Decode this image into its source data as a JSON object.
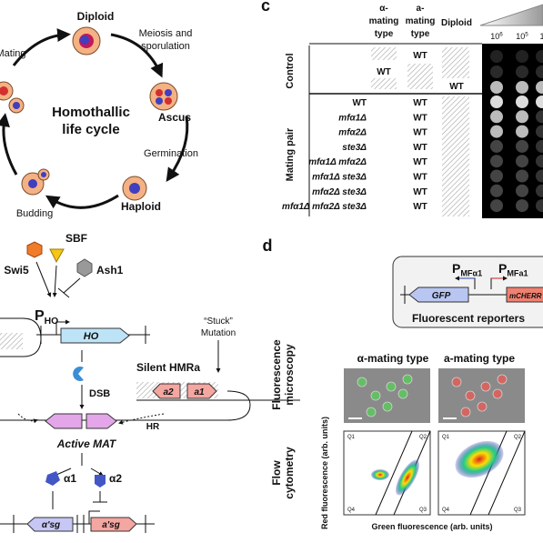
{
  "life_cycle": {
    "title": [
      "Homothallic",
      "life cycle"
    ],
    "diploid": "Diploid",
    "meiosis": [
      "Meiosis and",
      "sporulation"
    ],
    "ascus": "Ascus",
    "germination": "Germination",
    "haploid": "Haploid",
    "budding": "Budding",
    "mating": "Mating"
  },
  "spot_assay": {
    "panel_label": "c",
    "headers": {
      "alpha": [
        "α-",
        "mating",
        "type"
      ],
      "a": [
        "a-",
        "mating",
        "type"
      ],
      "diploid": "Diploid"
    },
    "dilutions": [
      {
        "base": "10",
        "exp": "6"
      },
      {
        "base": "10",
        "exp": "5"
      },
      {
        "base": "1",
        "exp": ""
      }
    ],
    "groups": [
      "Control",
      "Mating pair"
    ],
    "control": {
      "alpha": "WT",
      "a": "WT",
      "diploid": "WT"
    },
    "mating_rows": [
      [
        "WT",
        "WT"
      ],
      [
        "mfα1Δ",
        "WT"
      ],
      [
        "mfα2Δ",
        "WT"
      ],
      [
        "ste3Δ",
        "WT"
      ],
      [
        "mfα1Δ mfα2Δ",
        "WT"
      ],
      [
        "mfα1Δ ste3Δ",
        "WT"
      ],
      [
        "mfα2Δ ste3Δ",
        "WT"
      ],
      [
        "mfα1Δ mfα2Δ ste3Δ",
        "WT"
      ]
    ]
  },
  "pathway": {
    "swi5": "Swi5",
    "sbf": "SBF",
    "ash1": "Ash1",
    "promoter": {
      "main": "P",
      "sub": "HO"
    },
    "gene": "HO",
    "dsb": "DSB",
    "silent": "Silent HMRa",
    "stuck": [
      "“Stuck”",
      "Mutation"
    ],
    "silent_genes": [
      "a2",
      "a1"
    ],
    "hr": "HR",
    "active": "Active MAT",
    "proteins": [
      "α1",
      "α2"
    ],
    "targets": [
      "α'sg",
      "a'sg"
    ]
  },
  "reporters": {
    "panel_label": "d",
    "promoters": [
      {
        "main": "P",
        "sub": "MFα1"
      },
      {
        "main": "P",
        "sub": "MFa1"
      }
    ],
    "genes": [
      "GFP",
      "mCHERR"
    ],
    "caption": "Fluorescent reporters",
    "rows": [
      [
        "Fluorescence",
        "microscopy"
      ],
      [
        "Flow",
        "cytometry"
      ]
    ],
    "columns": [
      "α-mating type",
      "a-mating type"
    ],
    "y_axis": "Red fluorescence (arb. units)",
    "x_axis": "Green fluorescence (arb. units)",
    "quadrants": [
      "Q1",
      "Q2",
      "Q3",
      "Q4"
    ]
  }
}
